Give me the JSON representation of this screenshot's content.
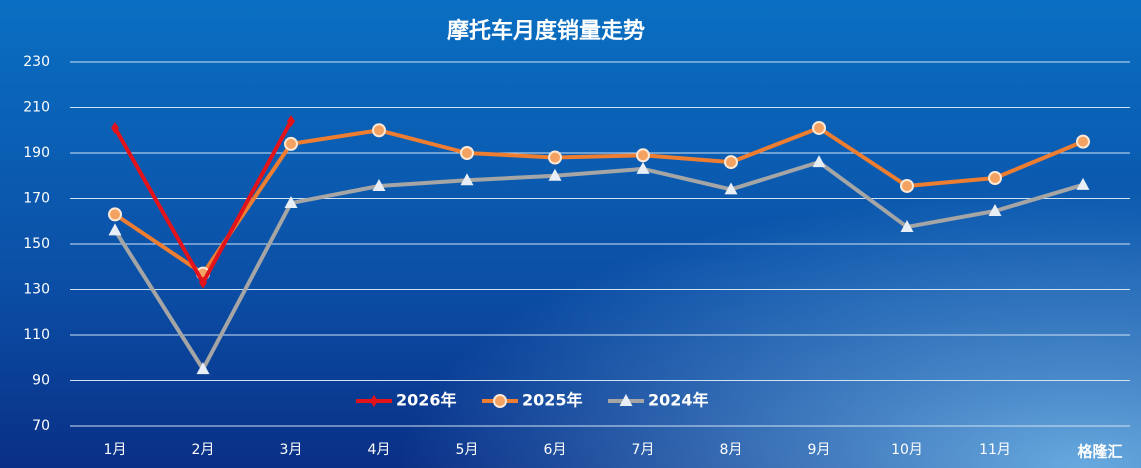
{
  "chart_data": {
    "type": "line",
    "title": "摩托车月度销量走势",
    "categories": [
      "1月",
      "2月",
      "3月",
      "4月",
      "5月",
      "6月",
      "7月",
      "8月",
      "9月",
      "10月",
      "11月",
      null
    ],
    "series": [
      {
        "name": "2026年",
        "color": "#e3131b",
        "marker": "diamond",
        "values": [
          201,
          133,
          204,
          null,
          null,
          null,
          null,
          null,
          null,
          null,
          null,
          null
        ]
      },
      {
        "name": "2025年",
        "color": "#ed7d31",
        "marker": "circle",
        "values": [
          163,
          137,
          194,
          200,
          190,
          188,
          189,
          186,
          201,
          175.5,
          179,
          195
        ]
      },
      {
        "name": "2024年",
        "color": "#a5a5a5",
        "marker": "triangle",
        "values": [
          156,
          95,
          168,
          175.5,
          178,
          180,
          183,
          174,
          186,
          157.5,
          164.5,
          176
        ]
      }
    ],
    "ylim": [
      70,
      230
    ],
    "yticks": [
      70,
      90,
      110,
      130,
      150,
      170,
      190,
      210,
      230
    ],
    "grid": true,
    "legend": "bottom",
    "watermark": "格隆汇"
  }
}
